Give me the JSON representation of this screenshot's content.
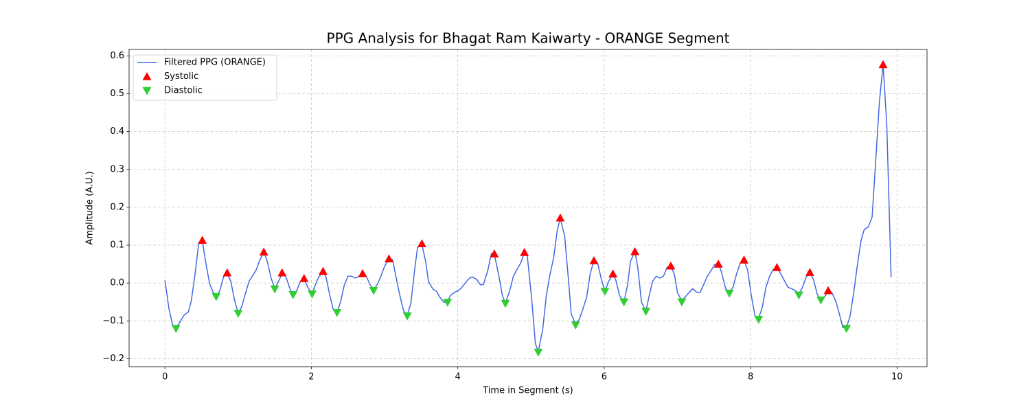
{
  "chart_data": {
    "type": "line",
    "title": "PPG Analysis for Bhagat Ram Kaiwarty - ORANGE Segment",
    "xlabel": "Time in Segment (s)",
    "ylabel": "Amplitude (A.U.)",
    "xlim": [
      -0.49,
      10.41
    ],
    "ylim": [
      -0.221,
      0.617
    ],
    "xticks": [
      0,
      2,
      4,
      6,
      8,
      10
    ],
    "yticks": [
      {
        "value": -0.2,
        "label": "−0.2"
      },
      {
        "value": -0.1,
        "label": "−0.1"
      },
      {
        "value": 0,
        "label": "0.0"
      },
      0.1,
      0.2,
      0.3,
      0.4,
      0.5,
      0.6
    ],
    "grid": true,
    "legend": "upper left",
    "series": [
      {
        "name": "Filtered PPG (ORANGE)",
        "color": "#4169e1",
        "marker": "none",
        "x": [
          0,
          0.056,
          0.11,
          0.15,
          0.22,
          0.26,
          0.32,
          0.36,
          0.41,
          0.46,
          0.51,
          0.55,
          0.61,
          0.66,
          0.7,
          0.75,
          0.8,
          0.85,
          0.9,
          0.95,
          1.0,
          1.05,
          1.1,
          1.15,
          1.2,
          1.25,
          1.29,
          1.35,
          1.4,
          1.45,
          1.5,
          1.55,
          1.6,
          1.65,
          1.7,
          1.75,
          1.8,
          1.85,
          1.9,
          1.95,
          2.01,
          2.05,
          2.1,
          2.16,
          2.2,
          2.25,
          2.3,
          2.35,
          2.4,
          2.45,
          2.5,
          2.55,
          2.6,
          2.65,
          2.7,
          2.75,
          2.8,
          2.85,
          2.9,
          2.95,
          3.0,
          3.06,
          3.11,
          3.15,
          3.21,
          3.26,
          3.31,
          3.36,
          3.41,
          3.45,
          3.51,
          3.56,
          3.6,
          3.66,
          3.71,
          3.75,
          3.81,
          3.86,
          3.9,
          3.96,
          4.01,
          4.05,
          4.11,
          4.16,
          4.2,
          4.26,
          4.31,
          4.35,
          4.41,
          4.46,
          4.5,
          4.56,
          4.61,
          4.65,
          4.71,
          4.76,
          4.8,
          4.86,
          4.91,
          4.95,
          5.01,
          5.06,
          5.1,
          5.16,
          5.21,
          5.25,
          5.31,
          5.36,
          5.4,
          5.46,
          5.51,
          5.55,
          5.61,
          5.66,
          5.7,
          5.76,
          5.81,
          5.86,
          5.91,
          5.96,
          6.01,
          6.06,
          6.12,
          6.16,
          6.21,
          6.27,
          6.32,
          6.36,
          6.42,
          6.46,
          6.51,
          6.57,
          6.61,
          6.66,
          6.71,
          6.76,
          6.81,
          6.86,
          6.91,
          6.96,
          7.0,
          7.06,
          7.11,
          7.16,
          7.21,
          7.26,
          7.31,
          7.36,
          7.41,
          7.46,
          7.51,
          7.56,
          7.6,
          7.66,
          7.71,
          7.76,
          7.81,
          7.86,
          7.91,
          7.96,
          8.01,
          8.06,
          8.11,
          8.16,
          8.21,
          8.26,
          8.31,
          8.36,
          8.41,
          8.46,
          8.51,
          8.56,
          8.61,
          8.66,
          8.71,
          8.76,
          8.81,
          8.86,
          8.91,
          8.96,
          9.01,
          9.06,
          9.11,
          9.17,
          9.22,
          9.26,
          9.31,
          9.36,
          9.41,
          9.46,
          9.51,
          9.55,
          9.61,
          9.66,
          9.7,
          9.76,
          9.81,
          9.86,
          9.92
        ],
        "values": [
          0.007,
          -0.07,
          -0.115,
          -0.12,
          -0.098,
          -0.085,
          -0.076,
          -0.047,
          0.022,
          0.103,
          0.113,
          0.062,
          -0.002,
          -0.025,
          -0.036,
          -0.02,
          0.016,
          0.027,
          0.004,
          -0.045,
          -0.08,
          -0.062,
          -0.027,
          0.005,
          0.02,
          0.036,
          0.058,
          0.082,
          0.056,
          0.013,
          -0.015,
          0.004,
          0.025,
          0.018,
          -0.011,
          -0.033,
          -0.02,
          0.004,
          0.011,
          -0.011,
          -0.029,
          -0.007,
          0.016,
          0.029,
          0.016,
          -0.031,
          -0.071,
          -0.078,
          -0.049,
          -0.005,
          0.018,
          0.018,
          0.013,
          0.018,
          0.025,
          0.018,
          -0.004,
          -0.018,
          -0.004,
          0.018,
          0.044,
          0.064,
          0.062,
          0.022,
          -0.034,
          -0.073,
          -0.085,
          -0.053,
          0.034,
          0.094,
          0.102,
          0.058,
          0.004,
          -0.016,
          -0.022,
          -0.036,
          -0.051,
          -0.049,
          -0.033,
          -0.024,
          -0.02,
          -0.013,
          0.002,
          0.013,
          0.016,
          0.009,
          -0.005,
          -0.004,
          0.033,
          0.078,
          0.076,
          0.02,
          -0.034,
          -0.053,
          -0.02,
          0.018,
          0.033,
          0.053,
          0.08,
          0.071,
          -0.042,
          -0.16,
          -0.181,
          -0.123,
          -0.033,
          0.013,
          0.067,
          0.14,
          0.171,
          0.125,
          0.013,
          -0.082,
          -0.109,
          -0.096,
          -0.074,
          -0.038,
          0.025,
          0.06,
          0.053,
          0.011,
          -0.022,
          0.004,
          0.024,
          0.007,
          -0.033,
          -0.051,
          -0.004,
          0.058,
          0.083,
          0.04,
          -0.051,
          -0.074,
          -0.038,
          0.004,
          0.018,
          0.013,
          0.018,
          0.042,
          0.045,
          0.022,
          -0.025,
          -0.047,
          -0.036,
          -0.025,
          -0.015,
          -0.024,
          -0.025,
          -0.004,
          0.018,
          0.033,
          0.049,
          0.051,
          0.031,
          -0.015,
          -0.025,
          -0.011,
          0.025,
          0.053,
          0.06,
          0.034,
          -0.033,
          -0.087,
          -0.093,
          -0.064,
          -0.011,
          0.018,
          0.036,
          0.04,
          0.025,
          0.007,
          -0.011,
          -0.015,
          -0.02,
          -0.029,
          -0.011,
          0.016,
          0.027,
          0.009,
          -0.029,
          -0.045,
          -0.036,
          -0.024,
          -0.025,
          -0.051,
          -0.087,
          -0.118,
          -0.118,
          -0.087,
          -0.024,
          0.049,
          0.113,
          0.14,
          0.149,
          0.174,
          0.294,
          0.479,
          0.577,
          0.421,
          0.016
        ]
      },
      {
        "name": "Systolic",
        "color": "#ff0000",
        "marker": "triangle-up",
        "x": [
          0.51,
          0.85,
          1.35,
          1.6,
          1.9,
          2.16,
          2.7,
          3.06,
          3.51,
          4.5,
          4.91,
          5.4,
          5.86,
          6.12,
          6.42,
          6.91,
          7.56,
          7.91,
          8.36,
          8.81,
          9.06,
          9.81
        ],
        "values": [
          0.113,
          0.027,
          0.082,
          0.027,
          0.012,
          0.031,
          0.025,
          0.064,
          0.104,
          0.077,
          0.081,
          0.172,
          0.059,
          0.024,
          0.083,
          0.045,
          0.05,
          0.061,
          0.041,
          0.028,
          -0.02,
          0.577
        ]
      },
      {
        "name": "Diastolic",
        "color": "#32cd32",
        "marker": "triangle-down",
        "x": [
          0.15,
          0.7,
          1.0,
          1.5,
          1.75,
          2.01,
          2.35,
          2.85,
          3.31,
          3.86,
          4.65,
          5.1,
          5.61,
          6.01,
          6.27,
          6.57,
          7.06,
          7.71,
          8.11,
          8.66,
          8.96,
          9.31
        ],
        "values": [
          -0.12,
          -0.036,
          -0.08,
          -0.016,
          -0.031,
          -0.029,
          -0.078,
          -0.02,
          -0.087,
          -0.051,
          -0.054,
          -0.183,
          -0.111,
          -0.022,
          -0.05,
          -0.075,
          -0.05,
          -0.027,
          -0.096,
          -0.032,
          -0.045,
          -0.12
        ]
      }
    ]
  }
}
